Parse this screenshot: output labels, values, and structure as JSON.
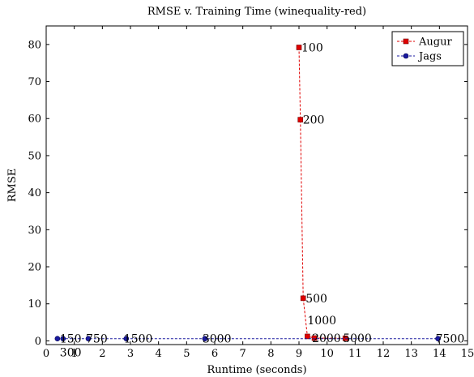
{
  "chart_data": {
    "type": "line",
    "title": "RMSE v. Training Time (winequality-red)",
    "xlabel": "Runtime (seconds)",
    "ylabel": "RMSE",
    "xlim": [
      0,
      15
    ],
    "ylim": [
      -1,
      85
    ],
    "xticks": [
      0,
      1,
      2,
      3,
      4,
      5,
      6,
      7,
      8,
      9,
      10,
      11,
      12,
      13,
      14,
      15
    ],
    "yticks": [
      0,
      10,
      20,
      30,
      40,
      50,
      60,
      70,
      80
    ],
    "grid": false,
    "legend_position": "top-right",
    "series": [
      {
        "name": "Augur",
        "color": "#e00000",
        "marker": "square",
        "line_style": "dashed",
        "points": [
          {
            "x": 9.0,
            "y": 79.2,
            "label": "100"
          },
          {
            "x": 9.05,
            "y": 59.7,
            "label": "200"
          },
          {
            "x": 9.15,
            "y": 11.5,
            "label": "500"
          },
          {
            "x": 9.3,
            "y": 1.2,
            "label": "1000"
          },
          {
            "x": 9.55,
            "y": 0.75,
            "label": "2000"
          },
          {
            "x": 10.65,
            "y": 0.7,
            "label": "5000"
          }
        ]
      },
      {
        "name": "Jags",
        "color": "#1a1aa0",
        "marker": "circle",
        "line_style": "dashed",
        "points": [
          {
            "x": 0.4,
            "y": 0.6,
            "label": "150"
          },
          {
            "x": 0.6,
            "y": 0.6,
            "label": "300"
          },
          {
            "x": 1.5,
            "y": 0.6,
            "label": "750"
          },
          {
            "x": 2.85,
            "y": 0.6,
            "label": "1500"
          },
          {
            "x": 5.65,
            "y": 0.6,
            "label": "3000"
          },
          {
            "x": 13.95,
            "y": 0.6,
            "label": "7500"
          }
        ]
      }
    ]
  }
}
